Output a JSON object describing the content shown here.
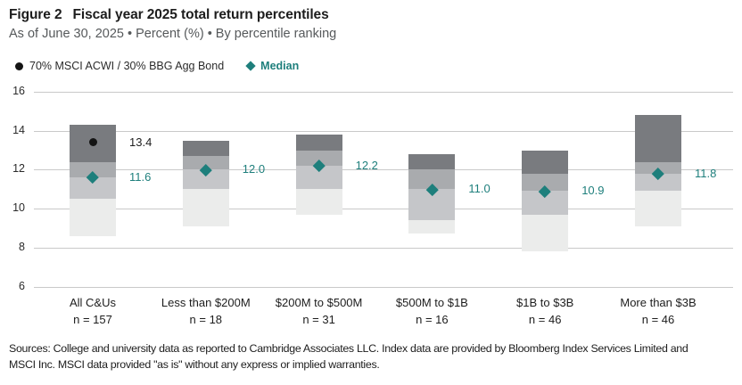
{
  "header": {
    "figure_label": "Figure 2",
    "title": "Fiscal year 2025 total return percentiles",
    "subtitle": "As of June 30, 2025 • Percent (%) • By percentile ranking"
  },
  "legend": {
    "benchmark": {
      "label": "70% MSCI ACWI / 30% BBG Agg Bond",
      "color": "#141414"
    },
    "median": {
      "label": "Median",
      "color": "#1e7f7c"
    }
  },
  "chart_data": {
    "type": "bar",
    "subtype": "percentile-range",
    "title": "Fiscal year 2025 total return percentiles",
    "ylabel": "Percent (%)",
    "ylim": [
      6,
      16
    ],
    "yticks": [
      16,
      14,
      12,
      10,
      8,
      6
    ],
    "grid": true,
    "legend_position": "top-left",
    "colors": {
      "band_5_25": "#797b7f",
      "band_25_50": "#a9abae",
      "band_50_75": "#c5c6c9",
      "band_75_95": "#ebeceb",
      "median": "#1e7f7c",
      "benchmark": "#141414"
    },
    "categories": [
      {
        "label": "All C&Us",
        "n_label": "n = 157",
        "p5": 14.3,
        "p25": 12.4,
        "p50": 11.6,
        "p75": 10.5,
        "p95": 8.6,
        "median_label": "11.6",
        "benchmark": 13.4,
        "benchmark_label": "13.4"
      },
      {
        "label": "Less than $200M",
        "n_label": "n = 18",
        "p5": 13.5,
        "p25": 12.7,
        "p50": 12.0,
        "p75": 11.0,
        "p95": 9.1,
        "median_label": "12.0"
      },
      {
        "label": "$200M to $500M",
        "n_label": "n = 31",
        "p5": 13.8,
        "p25": 13.0,
        "p50": 12.2,
        "p75": 11.0,
        "p95": 9.7,
        "median_label": "12.2"
      },
      {
        "label": "$500M to $1B",
        "n_label": "n = 16",
        "p5": 12.8,
        "p25": 12.0,
        "p50": 11.0,
        "p75": 9.4,
        "p95": 8.7,
        "median_label": "11.0"
      },
      {
        "label": "$1B to $3B",
        "n_label": "n = 46",
        "p5": 13.0,
        "p25": 11.8,
        "p50": 10.9,
        "p75": 9.7,
        "p95": 7.8,
        "median_label": "10.9"
      },
      {
        "label": "More than $3B",
        "n_label": "n = 46",
        "p5": 14.8,
        "p25": 12.4,
        "p50": 11.8,
        "p75": 10.9,
        "p95": 9.1,
        "median_label": "11.8"
      }
    ]
  },
  "footer": {
    "text": "Sources: College and university data as reported to Cambridge Associates LLC. Index data are provided by Bloomberg Index Services Limited and MSCI Inc. MSCI data provided \"as is\" without any express or implied warranties."
  }
}
